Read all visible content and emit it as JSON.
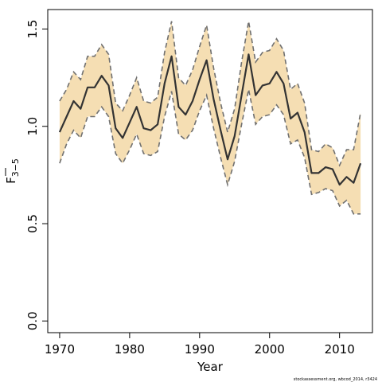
{
  "chart_data": {
    "type": "line",
    "title": "",
    "xlabel": "Year",
    "ylabel": "F",
    "ylabel_subscript": "3−5",
    "xlim": [
      1968.3,
      2014.7
    ],
    "ylim": [
      -0.06,
      1.6
    ],
    "x_ticks": [
      1970,
      1980,
      1990,
      2000,
      2010
    ],
    "y_ticks": [
      0.0,
      0.5,
      1.0,
      1.5
    ],
    "y_tick_labels": [
      "0.0",
      "0.5",
      "1.0",
      "1.5"
    ],
    "x": [
      1970,
      1971,
      1972,
      1973,
      1974,
      1975,
      1976,
      1977,
      1978,
      1979,
      1980,
      1981,
      1982,
      1983,
      1984,
      1985,
      1986,
      1987,
      1988,
      1989,
      1990,
      1991,
      1992,
      1993,
      1994,
      1995,
      1996,
      1997,
      1998,
      1999,
      2000,
      2001,
      2002,
      2003,
      2004,
      2005,
      2006,
      2007,
      2008,
      2009,
      2010,
      2011,
      2012,
      2013
    ],
    "series": [
      {
        "name": "",
        "style": "estimate",
        "values": [
          0.97,
          1.05,
          1.13,
          1.09,
          1.2,
          1.2,
          1.26,
          1.21,
          0.99,
          0.94,
          1.02,
          1.1,
          0.99,
          0.98,
          1.01,
          1.22,
          1.36,
          1.1,
          1.06,
          1.13,
          1.24,
          1.34,
          1.14,
          0.98,
          0.83,
          0.95,
          1.16,
          1.37,
          1.16,
          1.21,
          1.22,
          1.28,
          1.22,
          1.04,
          1.07,
          0.97,
          0.76,
          0.76,
          0.79,
          0.78,
          0.7,
          0.74,
          0.71,
          0.81
        ]
      },
      {
        "name": "",
        "style": "upper-bound",
        "values": [
          1.13,
          1.19,
          1.28,
          1.24,
          1.36,
          1.36,
          1.42,
          1.37,
          1.12,
          1.08,
          1.16,
          1.25,
          1.13,
          1.12,
          1.15,
          1.38,
          1.54,
          1.25,
          1.21,
          1.29,
          1.41,
          1.52,
          1.3,
          1.12,
          0.97,
          1.09,
          1.33,
          1.54,
          1.33,
          1.38,
          1.39,
          1.45,
          1.39,
          1.19,
          1.22,
          1.12,
          0.88,
          0.87,
          0.91,
          0.89,
          0.8,
          0.88,
          0.88,
          1.07
        ]
      },
      {
        "name": "",
        "style": "lower-bound",
        "values": [
          0.81,
          0.91,
          0.98,
          0.94,
          1.05,
          1.05,
          1.1,
          1.05,
          0.86,
          0.81,
          0.88,
          0.96,
          0.86,
          0.85,
          0.87,
          1.05,
          1.18,
          0.96,
          0.93,
          0.98,
          1.08,
          1.16,
          0.99,
          0.84,
          0.7,
          0.82,
          1.01,
          1.19,
          1.01,
          1.05,
          1.06,
          1.11,
          1.06,
          0.91,
          0.93,
          0.84,
          0.65,
          0.66,
          0.68,
          0.67,
          0.59,
          0.62,
          0.55,
          0.55
        ]
      }
    ],
    "colors": {
      "band_fill": "#f5deb3",
      "band_edge": "#707070",
      "line": "#333333",
      "axis": "#000000"
    },
    "grid": false,
    "legend": "none"
  },
  "credit": "stockassessment.org, wbcod_2014, r3424"
}
